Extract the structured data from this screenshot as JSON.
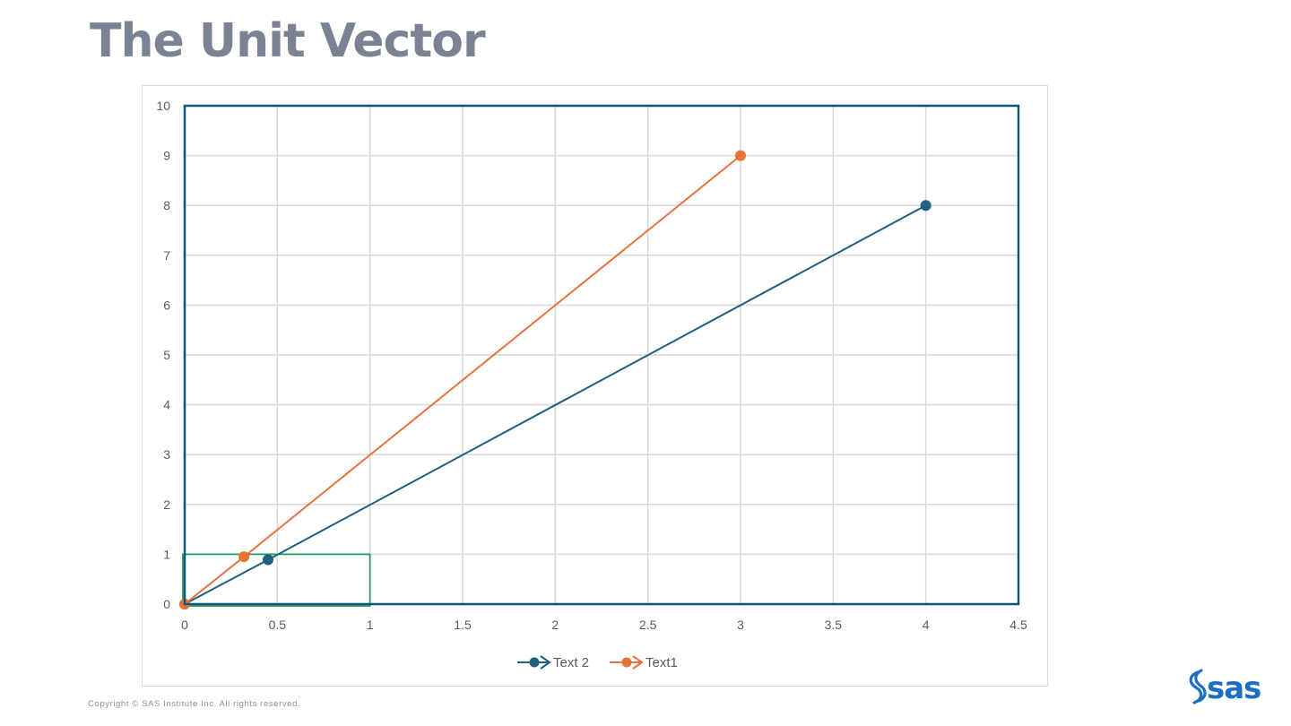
{
  "page": {
    "title": "The Unit Vector",
    "copyright": "Copyright © SAS Institute Inc. All rights reserved.",
    "logo_text": "sas"
  },
  "colors": {
    "series_blue": "#1f5f7f",
    "series_orange": "#e8733a",
    "plot_border": "#0e5677",
    "grid": "#d9d9d9",
    "highlight_box": "#1e9a5a",
    "title": "#7a8394",
    "logo": "#1a6fc4"
  },
  "chart_data": {
    "type": "line",
    "xlim": [
      0,
      4.5
    ],
    "ylim": [
      0,
      10
    ],
    "x_ticks": [
      "0",
      "0.5",
      "1",
      "1.5",
      "2",
      "2.5",
      "3",
      "3.5",
      "4",
      "4.5"
    ],
    "y_ticks": [
      "0",
      "1",
      "2",
      "3",
      "4",
      "5",
      "6",
      "7",
      "8",
      "9",
      "10"
    ],
    "grid": true,
    "legend_position": "bottom",
    "series": [
      {
        "name": "Text 2",
        "color": "#1f5f7f",
        "points": [
          [
            0,
            0
          ],
          [
            0.45,
            0.89
          ],
          [
            4,
            8
          ]
        ]
      },
      {
        "name": "Text1",
        "color": "#e8733a",
        "points": [
          [
            0,
            0
          ],
          [
            0.32,
            0.95
          ],
          [
            3,
            9
          ]
        ]
      }
    ],
    "highlight_box": {
      "x": [
        0,
        1
      ],
      "y": [
        0,
        1
      ]
    }
  }
}
